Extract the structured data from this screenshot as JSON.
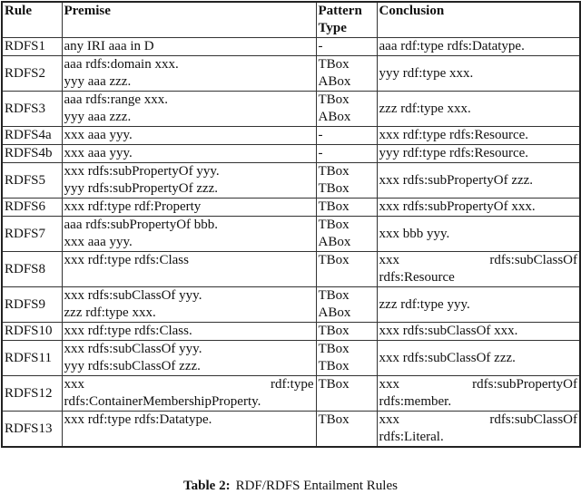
{
  "table": {
    "headers": [
      "Rule",
      "Premise",
      "Pattern Type",
      "Conclusion"
    ],
    "header_pattern_lines": [
      "Pattern",
      "Type"
    ],
    "rows": [
      {
        "rule": "RDFS1",
        "premise": [
          "any IRI aaa in D"
        ],
        "pattern": [
          "-"
        ],
        "conclusion": [
          "aaa rdf:type rdfs:Datatype."
        ]
      },
      {
        "rule": "RDFS2",
        "premise": [
          "aaa rdfs:domain xxx.",
          "yyy aaa zzz."
        ],
        "pattern": [
          "TBox",
          "ABox"
        ],
        "conclusion": [
          "yyy rdf:type xxx."
        ]
      },
      {
        "rule": "RDFS3",
        "premise": [
          "aaa rdfs:range xxx.",
          "yyy aaa zzz."
        ],
        "pattern": [
          "TBox",
          "ABox"
        ],
        "conclusion": [
          "zzz rdf:type xxx."
        ]
      },
      {
        "rule": "RDFS4a",
        "premise": [
          "xxx aaa yyy."
        ],
        "pattern": [
          "-"
        ],
        "conclusion": [
          "xxx rdf:type rdfs:Resource."
        ]
      },
      {
        "rule": "RDFS4b",
        "premise": [
          "xxx aaa yyy."
        ],
        "pattern": [
          "-"
        ],
        "conclusion": [
          "yyy rdf:type rdfs:Resource."
        ]
      },
      {
        "rule": "RDFS5",
        "premise": [
          "xxx rdfs:subPropertyOf yyy.",
          "yyy rdfs:subPropertyOf zzz."
        ],
        "pattern": [
          "TBox",
          "TBox"
        ],
        "conclusion": [
          "xxx rdfs:subPropertyOf zzz."
        ]
      },
      {
        "rule": "RDFS6",
        "premise": [
          "xxx rdf:type rdf:Property"
        ],
        "pattern": [
          "TBox"
        ],
        "conclusion": [
          "xxx rdfs:subPropertyOf xxx."
        ]
      },
      {
        "rule": "RDFS7",
        "premise": [
          "aaa rdfs:subPropertyOf bbb.",
          "xxx aaa yyy."
        ],
        "pattern": [
          "TBox",
          "ABox"
        ],
        "conclusion": [
          "xxx bbb yyy."
        ]
      },
      {
        "rule": "RDFS8",
        "premise": [
          "xxx rdf:type rdfs:Class"
        ],
        "pattern": [
          "TBox"
        ],
        "conclusion_just": [
          "xxx",
          "rdfs:subClassOf"
        ],
        "conclusion": [
          "rdfs:Resource"
        ]
      },
      {
        "rule": "RDFS9",
        "premise": [
          "xxx rdfs:subClassOf yyy.",
          "zzz rdf:type xxx."
        ],
        "pattern": [
          "TBox",
          "ABox"
        ],
        "conclusion": [
          "zzz rdf:type yyy."
        ]
      },
      {
        "rule": "RDFS10",
        "premise": [
          "xxx rdf:type rdfs:Class."
        ],
        "pattern": [
          "TBox"
        ],
        "conclusion": [
          "xxx rdfs:subClassOf xxx."
        ]
      },
      {
        "rule": "RDFS11",
        "premise": [
          "xxx rdfs:subClassOf yyy.",
          "yyy rdfs:subClassOf zzz."
        ],
        "pattern": [
          "TBox",
          "TBox"
        ],
        "conclusion": [
          "xxx rdfs:subClassOf zzz."
        ]
      },
      {
        "rule": "RDFS12",
        "premise_just": [
          "xxx",
          "rdf:type"
        ],
        "premise": [
          "rdfs:ContainerMembershipProperty."
        ],
        "pattern": [
          "TBox"
        ],
        "conclusion_just": [
          "xxx",
          "rdfs:subPropertyOf"
        ],
        "conclusion": [
          "rdfs:member."
        ]
      },
      {
        "rule": "RDFS13",
        "premise": [
          "xxx rdf:type rdfs:Datatype."
        ],
        "pattern": [
          "TBox"
        ],
        "conclusion_just": [
          "xxx",
          "rdfs:subClassOf"
        ],
        "conclusion": [
          "rdfs:Literal."
        ]
      }
    ]
  },
  "caption": {
    "label": "Table 2:",
    "text": "RDF/RDFS Entailment Rules"
  }
}
